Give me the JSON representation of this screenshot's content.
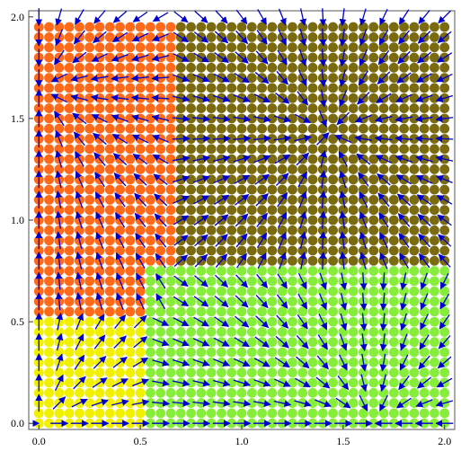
{
  "chart_data": {
    "type": "scatter",
    "title": "",
    "xlabel": "",
    "ylabel": "",
    "xlim": [
      -0.05,
      2.05
    ],
    "ylim": [
      -0.03,
      2.03
    ],
    "grid": false,
    "legend": "none",
    "x_ticks": [
      {
        "value": 0.0,
        "label": "0.0"
      },
      {
        "value": 0.5,
        "label": "0.5"
      },
      {
        "value": 1.0,
        "label": "1.0"
      },
      {
        "value": 1.5,
        "label": "1.5"
      },
      {
        "value": 2.0,
        "label": "2.0"
      }
    ],
    "y_ticks": [
      {
        "value": 0.0,
        "label": "0.0"
      },
      {
        "value": 0.5,
        "label": "0.5"
      },
      {
        "value": 1.0,
        "label": "1.0"
      },
      {
        "value": 1.5,
        "label": "1.5"
      },
      {
        "value": 2.0,
        "label": "2.0"
      }
    ],
    "point_spacing": 0.05,
    "regions": [
      {
        "color": "#f0f000",
        "x": [
          0.0,
          0.55
        ],
        "y": [
          0.0,
          0.55
        ]
      },
      {
        "color": "#ff6a1a",
        "x": [
          0.0,
          0.7
        ],
        "y": [
          0.55,
          1.95
        ]
      },
      {
        "color": "#7a6a10",
        "x": [
          0.7,
          2.0
        ],
        "y": [
          0.8,
          1.95
        ]
      },
      {
        "color": "#86ee3a",
        "x": [
          0.55,
          2.0
        ],
        "y": [
          0.0,
          0.75
        ]
      }
    ],
    "equilibria": [
      {
        "x": 0.0,
        "y": 0.0,
        "type": "unstable"
      },
      {
        "x": 0.0,
        "y": 1.65,
        "type": "stable"
      },
      {
        "x": 1.65,
        "y": 0.0,
        "type": "stable"
      },
      {
        "x": 0.55,
        "y": 0.55,
        "type": "saddle"
      },
      {
        "x": 1.43,
        "y": 1.43,
        "type": "stable"
      }
    ],
    "arrow_color": "#0000cc",
    "arrow_spacing": 0.1
  }
}
